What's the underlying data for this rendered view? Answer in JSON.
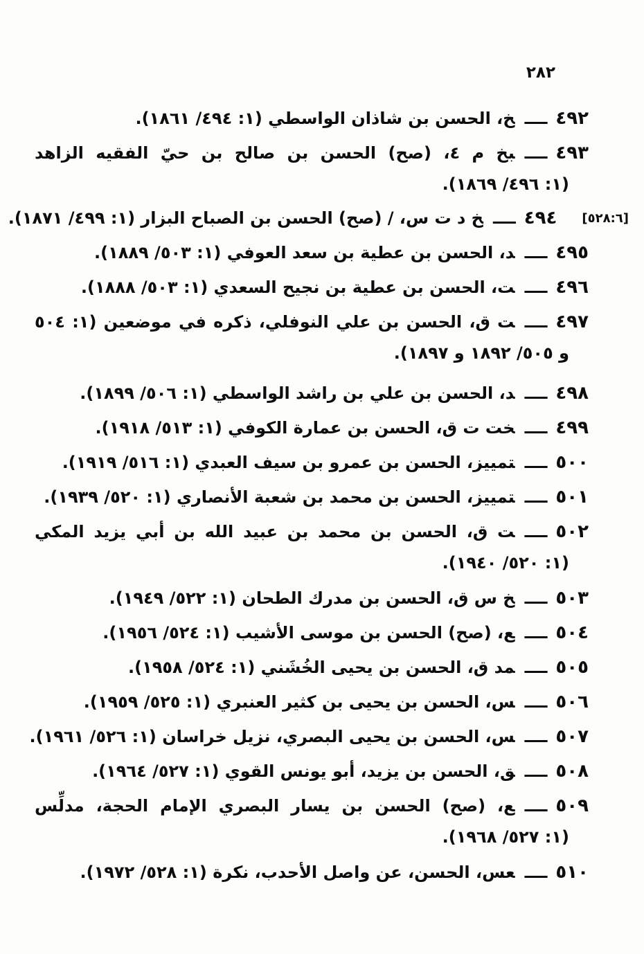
{
  "page": {
    "number": "٢٨٢"
  },
  "glyphs": {
    "dash": "ــــ"
  },
  "entries": [
    {
      "num": "٤٩٢",
      "line1": "خ، الحسن بن شاذان الواسطي (١: ٤٩٤/ ١٨٦١)."
    },
    {
      "num": "٤٩٣",
      "line1": "بخ م ٤، (صح) الحسن بن صالح بن حيّ الفقيه الزاهد",
      "line2": "(١: ٤٩٦/ ١٨٦٩)."
    },
    {
      "num": "٤٩٤",
      "margin_note": "[٥٢٨:٦]",
      "line1": "خ د ت س، / (صح) الحسن بن الصباح البزار (١: ٤٩٩/ ١٨٧١)."
    },
    {
      "num": "٤٩٥",
      "line1": "د، الحسن بن عطية بن سعد العوفي (١: ٥٠٣/ ١٨٨٩)."
    },
    {
      "num": "٤٩٦",
      "line1": "ت، الحسن بن عطية بن نجيح السعدي (١: ٥٠٣/ ١٨٨٨)."
    },
    {
      "num": "٤٩٧",
      "line1": "ت ق، الحسن بن علي النوفلي، ذكره في موضعين (١: ٥٠٤",
      "line2": "و ٥٠٥/ ١٨٩٢ و ١٨٩٧)."
    },
    {
      "num": "٤٩٨",
      "line1": "د، الحسن بن علي بن راشد الواسطي (١: ٥٠٦/ ١٨٩٩)."
    },
    {
      "num": "٤٩٩",
      "line1": "خت ت ق، الحسن بن عمارة الكوفي (١: ٥١٣/ ١٩١٨)."
    },
    {
      "num": "٥٠٠",
      "line1": "تمييز، الحسن بن عمرو بن سيف العبدي (١: ٥١٦/ ١٩١٩)."
    },
    {
      "num": "٥٠١",
      "line1": "تمييز، الحسن بن محمد بن شعبة الأنصاري (١: ٥٢٠/ ١٩٣٩)."
    },
    {
      "num": "٥٠٢",
      "line1": "ت ق، الحسن بن محمد بن عبيد الله بن أبي يزيد المكي",
      "line2": "(١: ٥٢٠/ ١٩٤٠)."
    },
    {
      "num": "٥٠٣",
      "line1": "خ س ق، الحسن بن مدرك الطحان (١: ٥٢٢/ ١٩٤٩)."
    },
    {
      "num": "٥٠٤",
      "line1": "ع، (صح) الحسن بن موسى الأشيب (١: ٥٢٤/ ١٩٥٦)."
    },
    {
      "num": "٥٠٥",
      "line1": "مد ق، الحسن بن يحيى الخُشَني (١: ٥٢٤/ ١٩٥٨)."
    },
    {
      "num": "٥٠٦",
      "line1": "س، الحسن بن يحيى بن كثير العنبري (١: ٥٢٥/ ١٩٥٩)."
    },
    {
      "num": "٥٠٧",
      "line1": "س، الحسن بن يحيى البصري، نزيل خراسان (١: ٥٢٦/ ١٩٦١)."
    },
    {
      "num": "٥٠٨",
      "line1": "ق، الحسن بن يزيد، أبو يونس القوي (١: ٥٢٧/ ١٩٦٤)."
    },
    {
      "num": "٥٠٩",
      "line1": "ع، (صح) الحسن بن يسار البصري الإمام الحجة، مدلِّس",
      "line2": "(١: ٥٢٧/ ١٩٦٨)."
    },
    {
      "num": "٥١٠",
      "line1": "عس، الحسن، عن واصل الأحدب، نكرة (١: ٥٢٨/ ١٩٧٢)."
    }
  ]
}
